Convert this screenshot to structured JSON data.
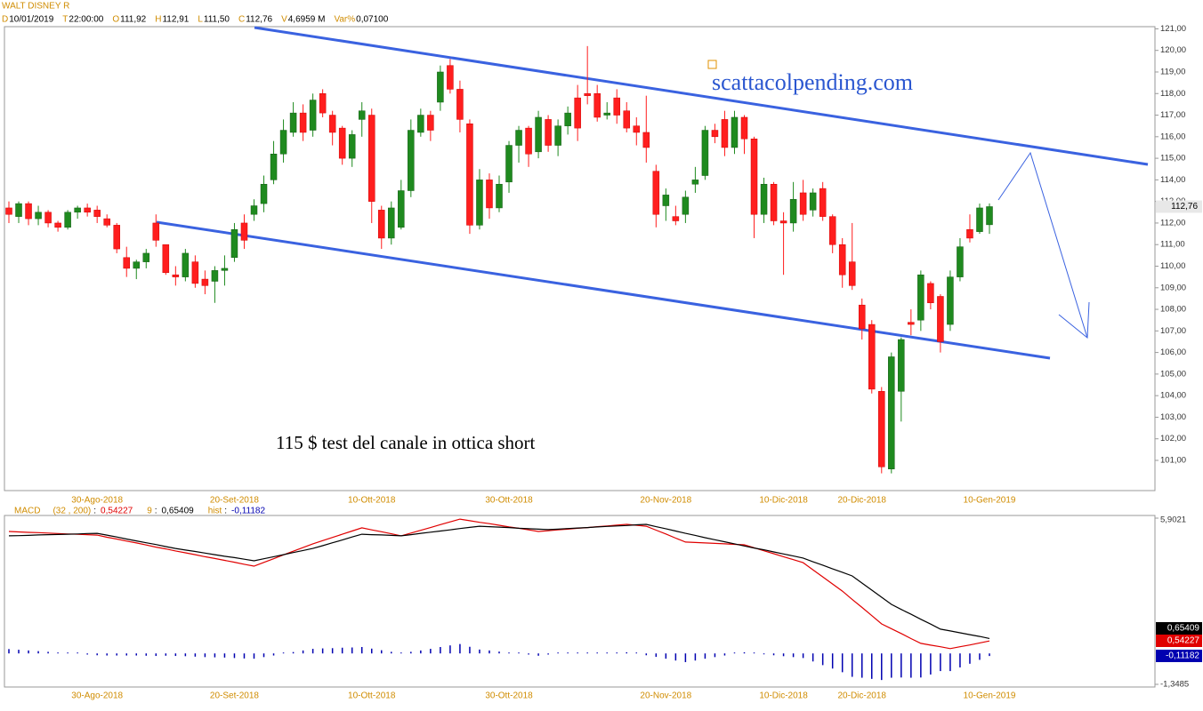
{
  "chart_data": {
    "type": "candlestick",
    "title": "WALT DISNEY R",
    "header": [
      {
        "key": "D",
        "value": "10/01/2019"
      },
      {
        "key": "T",
        "value": "22:00:00"
      },
      {
        "key": "O",
        "value": "111,92"
      },
      {
        "key": "H",
        "value": "112,91"
      },
      {
        "key": "L",
        "value": "111,50"
      },
      {
        "key": "C",
        "value": "112,76"
      },
      {
        "key": "V",
        "value": "4,6959 M"
      },
      {
        "key": "Var%",
        "value": "0,07100"
      }
    ],
    "categories": [
      null,
      null,
      null,
      null,
      null,
      null,
      null,
      null,
      null,
      "30-Ago-2018",
      null,
      null,
      null,
      null,
      null,
      null,
      null,
      null,
      null,
      null,
      null,
      null,
      null,
      "20-Set-2018",
      null,
      null,
      null,
      null,
      null,
      null,
      null,
      null,
      null,
      null,
      null,
      null,
      null,
      "10-Ott-2018",
      null,
      null,
      null,
      null,
      null,
      null,
      null,
      null,
      null,
      null,
      null,
      null,
      null,
      "30-Ott-2018",
      null,
      null,
      null,
      null,
      null,
      null,
      null,
      null,
      null,
      null,
      null,
      null,
      null,
      null,
      null,
      "20-Nov-2018",
      null,
      null,
      null,
      null,
      null,
      null,
      null,
      null,
      null,
      null,
      null,
      "10-Dic-2018",
      null,
      null,
      null,
      null,
      null,
      null,
      null,
      "20-Dic-2018",
      null,
      null,
      null,
      null,
      null,
      null,
      null,
      null,
      null,
      null,
      null,
      null,
      "10-Gen-2019"
    ],
    "open": [
      112.7,
      112.3,
      112.9,
      112.2,
      112.5,
      112.0,
      111.8,
      112.5,
      112.7,
      112.6,
      112.2,
      111.9,
      110.4,
      109.9,
      110.2,
      112.0,
      111.0,
      109.6,
      109.5,
      110.2,
      109.4,
      109.3,
      109.8,
      110.4,
      112.0,
      112.4,
      112.9,
      114.0,
      115.2,
      116.2,
      117.1,
      116.3,
      118.0,
      117.0,
      116.4,
      115.0,
      116.8,
      117.0,
      112.6,
      111.3,
      111.8,
      113.5,
      116.2,
      117.0,
      117.6,
      119.3,
      118.2,
      116.6,
      111.9,
      114.0,
      112.7,
      113.9,
      115.6,
      116.4,
      115.3,
      116.8,
      115.6,
      116.5,
      117.8,
      118.0,
      118.0,
      117.0,
      117.8,
      117.2,
      116.5,
      116.2,
      114.4,
      112.8,
      112.3,
      112.4,
      113.8,
      114.2,
      116.3,
      116.8,
      115.5,
      116.9,
      115.9,
      112.4,
      113.8,
      112.1,
      112.0,
      113.4,
      112.6,
      113.6,
      112.3,
      111.0,
      110.2,
      108.2,
      107.3,
      104.2,
      100.6,
      104.2,
      107.4,
      107.5,
      109.2,
      108.6,
      107.3,
      109.5,
      111.7,
      111.6,
      111.92
    ],
    "high": [
      113.0,
      113.0,
      113.0,
      112.8,
      112.6,
      112.1,
      112.6,
      112.8,
      112.9,
      112.8,
      112.4,
      112.0,
      110.9,
      110.3,
      110.8,
      112.4,
      111.0,
      110.0,
      110.8,
      110.5,
      109.8,
      110.0,
      110.5,
      112.0,
      112.4,
      113.1,
      114.2,
      115.8,
      116.8,
      117.6,
      117.5,
      118.0,
      118.2,
      117.2,
      116.5,
      116.3,
      117.6,
      117.3,
      112.8,
      113.0,
      114.0,
      116.8,
      117.3,
      117.2,
      119.3,
      119.6,
      118.6,
      116.8,
      114.5,
      114.3,
      114.2,
      115.8,
      116.5,
      116.5,
      117.2,
      117.0,
      116.8,
      117.4,
      118.4,
      120.2,
      118.4,
      117.6,
      118.2,
      117.6,
      116.9,
      117.9,
      114.7,
      113.6,
      112.8,
      113.5,
      114.6,
      116.5,
      116.6,
      117.2,
      117.2,
      117.0,
      116.0,
      114.1,
      113.9,
      112.5,
      113.9,
      114.0,
      113.6,
      113.9,
      112.4,
      111.3,
      112.0,
      108.5,
      107.5,
      104.4,
      106.0,
      106.7,
      108.0,
      109.8,
      109.3,
      108.7,
      109.8,
      111.3,
      112.4,
      112.9,
      112.91
    ],
    "low": [
      112.0,
      112.0,
      111.9,
      111.9,
      111.8,
      111.6,
      111.7,
      112.2,
      112.3,
      112.0,
      111.8,
      110.6,
      109.5,
      109.4,
      109.9,
      110.9,
      109.6,
      109.1,
      109.3,
      109.0,
      108.7,
      108.3,
      109.1,
      110.2,
      110.8,
      112.1,
      112.5,
      113.8,
      114.8,
      116.0,
      115.8,
      116.0,
      116.9,
      115.6,
      114.7,
      114.6,
      116.0,
      112.0,
      110.8,
      111.0,
      111.7,
      113.2,
      116.0,
      115.8,
      117.2,
      118.0,
      116.2,
      111.5,
      111.7,
      112.2,
      112.5,
      113.4,
      114.8,
      114.6,
      115.0,
      115.3,
      115.1,
      116.1,
      115.8,
      117.5,
      116.7,
      116.8,
      116.6,
      116.2,
      115.6,
      114.8,
      111.8,
      112.1,
      111.9,
      112.0,
      113.4,
      114.0,
      115.7,
      115.1,
      115.2,
      115.2,
      111.3,
      112.0,
      111.9,
      109.6,
      111.6,
      112.1,
      112.3,
      112.1,
      110.6,
      109.0,
      108.9,
      106.6,
      104.1,
      100.4,
      100.4,
      102.8,
      106.8,
      107.0,
      108.0,
      106.0,
      107.0,
      109.3,
      111.1,
      111.5,
      111.5
    ],
    "close": [
      112.4,
      112.9,
      112.2,
      112.5,
      112.0,
      111.8,
      112.5,
      112.7,
      112.5,
      112.3,
      111.9,
      110.8,
      109.9,
      110.2,
      110.6,
      111.2,
      109.7,
      109.5,
      110.6,
      109.2,
      109.1,
      109.8,
      109.9,
      111.7,
      111.2,
      112.8,
      113.8,
      115.2,
      116.3,
      117.1,
      116.2,
      117.7,
      117.1,
      116.2,
      115.0,
      116.1,
      117.2,
      113.0,
      111.3,
      112.7,
      113.5,
      116.3,
      117.0,
      116.3,
      119.0,
      118.2,
      116.8,
      111.9,
      114.0,
      112.7,
      113.8,
      115.6,
      116.3,
      115.2,
      116.9,
      115.6,
      116.5,
      117.1,
      116.4,
      117.9,
      116.9,
      117.1,
      117.0,
      116.4,
      116.2,
      115.5,
      112.4,
      113.3,
      112.1,
      113.2,
      114.0,
      116.3,
      116.0,
      115.5,
      116.9,
      115.9,
      112.4,
      113.8,
      112.1,
      112.0,
      113.1,
      112.4,
      113.4,
      112.3,
      111.0,
      109.6,
      109.1,
      107.1,
      104.3,
      100.7,
      105.8,
      106.6,
      107.3,
      109.6,
      108.3,
      106.5,
      109.5,
      110.9,
      111.3,
      112.7,
      112.76
    ],
    "up_color": "#1f8a1f",
    "down_color": "#ff1e1e",
    "ylim": [
      99.6,
      121.1
    ],
    "yticks": [
      {
        "value": 101,
        "label": "101,00"
      },
      {
        "value": 102,
        "label": "102,00"
      },
      {
        "value": 103,
        "label": "103,00"
      },
      {
        "value": 104,
        "label": "104,00"
      },
      {
        "value": 105,
        "label": "105,00"
      },
      {
        "value": 106,
        "label": "106,00"
      },
      {
        "value": 107,
        "label": "107,00"
      },
      {
        "value": 108,
        "label": "108,00"
      },
      {
        "value": 109,
        "label": "109,00"
      },
      {
        "value": 110,
        "label": "110,00"
      },
      {
        "value": 111,
        "label": "111,00"
      },
      {
        "value": 112,
        "label": "112,00"
      },
      {
        "value": 113,
        "label": "113,00"
      },
      {
        "value": 114,
        "label": "114,00"
      },
      {
        "value": 115,
        "label": "115,00"
      },
      {
        "value": 116,
        "label": "116,00"
      },
      {
        "value": 117,
        "label": "117,00"
      },
      {
        "value": 118,
        "label": "118,00"
      },
      {
        "value": 119,
        "label": "119,00"
      },
      {
        "value": 120,
        "label": "120,00"
      },
      {
        "value": 121,
        "label": "121,00"
      }
    ],
    "last_price_label": "112,76",
    "annotations": [
      "scattacolpending.com",
      "115 $ test del canale in ottica short"
    ],
    "indicator": {
      "title": "MACD",
      "separator": ":",
      "ylim": [
        -1.3485,
        5.9021
      ],
      "yticks": [
        {
          "value": 5.9021,
          "label": "5,9021"
        },
        {
          "value": -1.3485,
          "label": "-1,3485"
        }
      ],
      "series": [
        {
          "name": "(32 , 200)",
          "color": "#e00000",
          "value_label": "0,54227",
          "values": [
            5.32,
            5.3,
            5.28,
            5.27,
            5.25,
            5.23,
            5.21,
            5.2,
            5.18,
            5.16,
            5.07,
            4.99,
            4.9,
            4.82,
            4.73,
            4.64,
            4.56,
            4.47,
            4.39,
            4.31,
            4.22,
            4.14,
            4.06,
            3.98,
            3.89,
            3.81,
            3.97,
            4.13,
            4.3,
            4.46,
            4.62,
            4.78,
            4.92,
            5.06,
            5.2,
            5.34,
            5.48,
            5.39,
            5.31,
            5.22,
            5.13,
            5.25,
            5.37,
            5.49,
            5.62,
            5.74,
            5.86,
            5.79,
            5.72,
            5.66,
            5.59,
            5.52,
            5.46,
            5.39,
            5.32,
            5.35,
            5.39,
            5.42,
            5.46,
            5.49,
            5.53,
            5.56,
            5.6,
            5.63,
            5.59,
            5.55,
            5.38,
            5.21,
            5.03,
            4.86,
            4.84,
            4.82,
            4.8,
            4.78,
            4.76,
            4.74,
            4.61,
            4.48,
            4.35,
            4.22,
            4.09,
            3.96,
            3.65,
            3.34,
            3.03,
            2.72,
            2.36,
            2.01,
            1.65,
            1.29,
            1.08,
            0.87,
            0.65,
            0.44,
            0.36,
            0.29,
            0.21,
            0.29,
            0.37,
            0.46,
            0.54227
          ]
        },
        {
          "name": "9",
          "color": "#000000",
          "value_label": "0,65409",
          "values": [
            5.13,
            5.14,
            5.15,
            5.17,
            5.18,
            5.19,
            5.2,
            5.21,
            5.23,
            5.24,
            5.16,
            5.08,
            4.99,
            4.91,
            4.83,
            4.75,
            4.66,
            4.58,
            4.51,
            4.45,
            4.38,
            4.31,
            4.24,
            4.18,
            4.11,
            4.04,
            4.13,
            4.22,
            4.31,
            4.4,
            4.49,
            4.58,
            4.7,
            4.83,
            4.95,
            5.08,
            5.2,
            5.18,
            5.17,
            5.15,
            5.13,
            5.18,
            5.24,
            5.29,
            5.34,
            5.39,
            5.45,
            5.5,
            5.55,
            5.53,
            5.51,
            5.49,
            5.46,
            5.44,
            5.42,
            5.4,
            5.42,
            5.45,
            5.47,
            5.49,
            5.52,
            5.54,
            5.56,
            5.58,
            5.61,
            5.63,
            5.53,
            5.44,
            5.34,
            5.24,
            5.15,
            5.05,
            4.96,
            4.87,
            4.78,
            4.69,
            4.6,
            4.52,
            4.43,
            4.34,
            4.25,
            4.16,
            4.0,
            3.85,
            3.69,
            3.54,
            3.38,
            3.07,
            2.76,
            2.45,
            2.14,
            1.92,
            1.71,
            1.49,
            1.28,
            1.06,
            0.98,
            0.9,
            0.82,
            0.74,
            0.65409
          ]
        },
        {
          "name": "hist",
          "color": "#0000b0",
          "value_label": "-0,11182",
          "style": "histogram",
          "values": [
            0.19,
            0.16,
            0.13,
            0.1,
            0.07,
            0.04,
            0.01,
            -0.01,
            -0.05,
            -0.08,
            -0.09,
            -0.09,
            -0.09,
            -0.09,
            -0.1,
            -0.11,
            -0.1,
            -0.11,
            -0.12,
            -0.14,
            -0.16,
            -0.17,
            -0.18,
            -0.2,
            -0.22,
            -0.23,
            -0.16,
            -0.09,
            -0.01,
            0.06,
            0.13,
            0.2,
            0.22,
            0.23,
            0.25,
            0.26,
            0.28,
            0.21,
            0.14,
            0.07,
            0.0,
            0.07,
            0.13,
            0.2,
            0.28,
            0.35,
            0.41,
            0.29,
            0.17,
            0.13,
            0.08,
            0.03,
            0.0,
            -0.05,
            -0.1,
            -0.05,
            -0.03,
            -0.03,
            -0.01,
            0.0,
            0.01,
            0.02,
            0.04,
            0.05,
            -0.02,
            -0.08,
            -0.15,
            -0.23,
            -0.31,
            -0.38,
            -0.31,
            -0.23,
            -0.16,
            -0.09,
            -0.02,
            0.05,
            0.01,
            -0.04,
            -0.08,
            -0.12,
            -0.16,
            -0.2,
            -0.35,
            -0.51,
            -0.66,
            -0.82,
            -1.02,
            -1.06,
            -1.11,
            -1.16,
            -1.06,
            -1.05,
            -1.06,
            -1.05,
            -0.92,
            -0.77,
            -0.77,
            -0.61,
            -0.45,
            -0.28,
            -0.11182
          ]
        }
      ]
    }
  }
}
